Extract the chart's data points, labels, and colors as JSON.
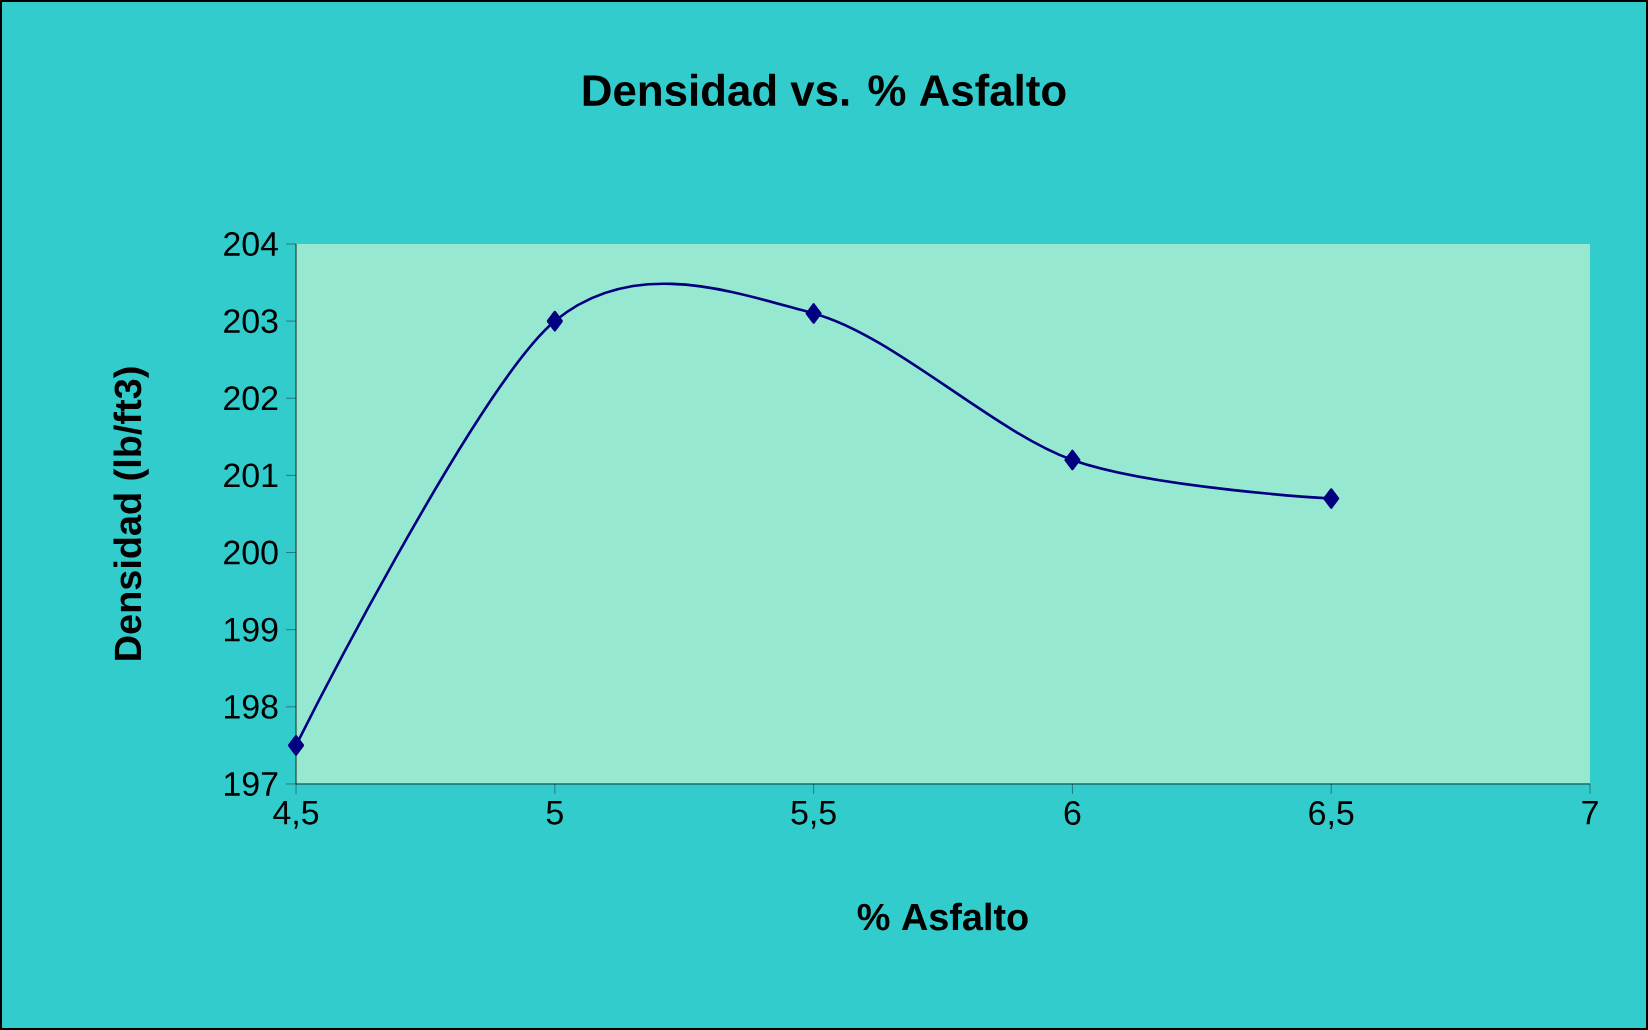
{
  "chart_data": {
    "type": "line",
    "title": "Densidad vs. % Asfalto",
    "xlabel": "% Asfalto",
    "ylabel": "Densidad (lb/ft3)",
    "x": [
      4.5,
      5,
      5.5,
      6,
      6.5
    ],
    "series": [
      {
        "color": "#000080",
        "values": [
          197.5,
          203,
          203.1,
          201.2,
          200.7
        ]
      }
    ],
    "xlim": [
      4.5,
      7
    ],
    "ylim": [
      197,
      204
    ],
    "xticks": [
      {
        "value": 4.5,
        "label": "4,5"
      },
      5,
      {
        "value": 5.5,
        "label": "5,5"
      },
      6,
      {
        "value": 6.5,
        "label": "6,5"
      },
      7
    ],
    "yticks": [
      197,
      198,
      199,
      200,
      201,
      202,
      203,
      204
    ],
    "marker": "diamond",
    "line_style": "solid",
    "grid": false
  }
}
